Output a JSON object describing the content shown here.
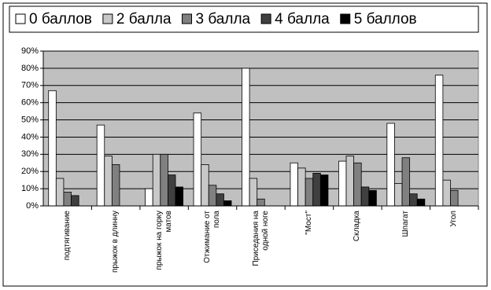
{
  "chart_data": {
    "type": "bar",
    "categories": [
      "подтягивание",
      "прыжок в длинну",
      "прыжок на горку матов",
      "Отжимание от пола",
      "Приседания на одной ноге",
      "\"Мост\"",
      "Складка",
      "Шпагат",
      "Угол"
    ],
    "series": [
      {
        "name": "0 баллов",
        "color": "#ffffff",
        "values": [
          67,
          47,
          10,
          54,
          80,
          25,
          26,
          48,
          76
        ]
      },
      {
        "name": "2 балла",
        "color": "#c8c8c8",
        "values": [
          16,
          29,
          30,
          24,
          16,
          22,
          29,
          13,
          15
        ]
      },
      {
        "name": "3 балла",
        "color": "#808080",
        "values": [
          8,
          24,
          30,
          12,
          4,
          16,
          25,
          28,
          9
        ]
      },
      {
        "name": "4 балла",
        "color": "#404040",
        "values": [
          6,
          0,
          18,
          7,
          0,
          19,
          11,
          7,
          0
        ]
      },
      {
        "name": "5 баллов",
        "color": "#000000",
        "values": [
          0,
          0,
          11,
          3,
          0,
          18,
          9,
          4,
          0
        ]
      }
    ],
    "ylim": [
      0,
      90
    ],
    "yticks": [
      {
        "value": 0,
        "label": "0%"
      },
      {
        "value": 10,
        "label": "10%"
      },
      {
        "value": 20,
        "label": "20%"
      },
      {
        "value": 30,
        "label": "30%"
      },
      {
        "value": 40,
        "label": "40%"
      },
      {
        "value": 50,
        "label": "50%"
      },
      {
        "value": 60,
        "label": "60%"
      },
      {
        "value": 70,
        "label": "70%"
      },
      {
        "value": 80,
        "label": "80%"
      },
      {
        "value": 90,
        "label": "90%"
      }
    ],
    "grid": true,
    "legend": "top"
  }
}
